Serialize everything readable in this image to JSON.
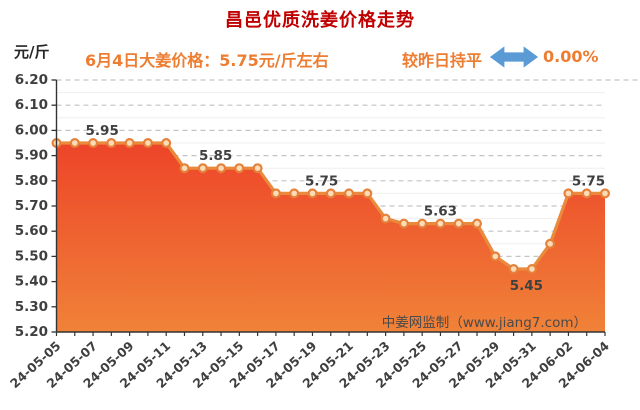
{
  "header": {
    "title": "昌邑优质洗姜价格走势",
    "subtitle": "6月4日大姜价格：5.75元/斤左右",
    "change_label": "较昨日持平",
    "change_percent": "0.00%",
    "change_icon": "double-headed-horizontal-arrow",
    "title_color": "#c00000",
    "accent_color": "#ed7d31",
    "arrow_color": "#5b9bd5"
  },
  "watermark": "中姜网监制（www.jiang7.com）",
  "chart_data": {
    "type": "area",
    "title": "昌邑优质洗姜价格走势",
    "y_unit": "元/斤",
    "ylim": [
      5.2,
      6.2
    ],
    "y_tick_step": 0.1,
    "y_ticks": [
      "6.20",
      "6.10",
      "6.00",
      "5.90",
      "5.80",
      "5.70",
      "5.60",
      "5.50",
      "5.40",
      "5.30",
      "5.20"
    ],
    "grid": "dashed-horizontal",
    "legend": "none",
    "x": [
      "24-05-05",
      "24-05-06",
      "24-05-07",
      "24-05-08",
      "24-05-09",
      "24-05-10",
      "24-05-11",
      "24-05-12",
      "24-05-13",
      "24-05-14",
      "24-05-15",
      "24-05-16",
      "24-05-17",
      "24-05-18",
      "24-05-19",
      "24-05-20",
      "24-05-21",
      "24-05-22",
      "24-05-23",
      "24-05-24",
      "24-05-25",
      "24-05-26",
      "24-05-27",
      "24-05-28",
      "24-05-29",
      "24-05-30",
      "24-05-31",
      "24-06-01",
      "24-06-02",
      "24-06-03",
      "24-06-04"
    ],
    "x_label_every": 2,
    "values": [
      5.95,
      5.95,
      5.95,
      5.95,
      5.95,
      5.95,
      5.95,
      5.85,
      5.85,
      5.85,
      5.85,
      5.85,
      5.75,
      5.75,
      5.75,
      5.75,
      5.75,
      5.75,
      5.65,
      5.63,
      5.63,
      5.63,
      5.63,
      5.63,
      5.5,
      5.45,
      5.45,
      5.55,
      5.75,
      5.75,
      5.75
    ],
    "annotations": [
      {
        "text": "5.95",
        "at": 2.5,
        "value": 5.95,
        "side": "above"
      },
      {
        "text": "5.85",
        "at": 8.7,
        "value": 5.85,
        "side": "above"
      },
      {
        "text": "5.75",
        "at": 14.5,
        "value": 5.75,
        "side": "above"
      },
      {
        "text": "5.63",
        "at": 21.0,
        "value": 5.63,
        "side": "above"
      },
      {
        "text": "5.45",
        "at": 25.7,
        "value": 5.45,
        "side": "below"
      },
      {
        "text": "5.75",
        "at": 29.1,
        "value": 5.75,
        "side": "above"
      }
    ],
    "colors": {
      "line": "#e98a3d",
      "marker_ring": "#e5813a",
      "marker_fill": "#fbdcb6",
      "area_top": "#ec3024",
      "area_bottom": "#f08238",
      "grid_major": "#c3c3c3",
      "grid_minor": "#f0eeee",
      "axis": "#333333",
      "tick_text": "#3f3f3f",
      "label_text": "#404040",
      "watermark_text": "#4a4a4a"
    }
  }
}
